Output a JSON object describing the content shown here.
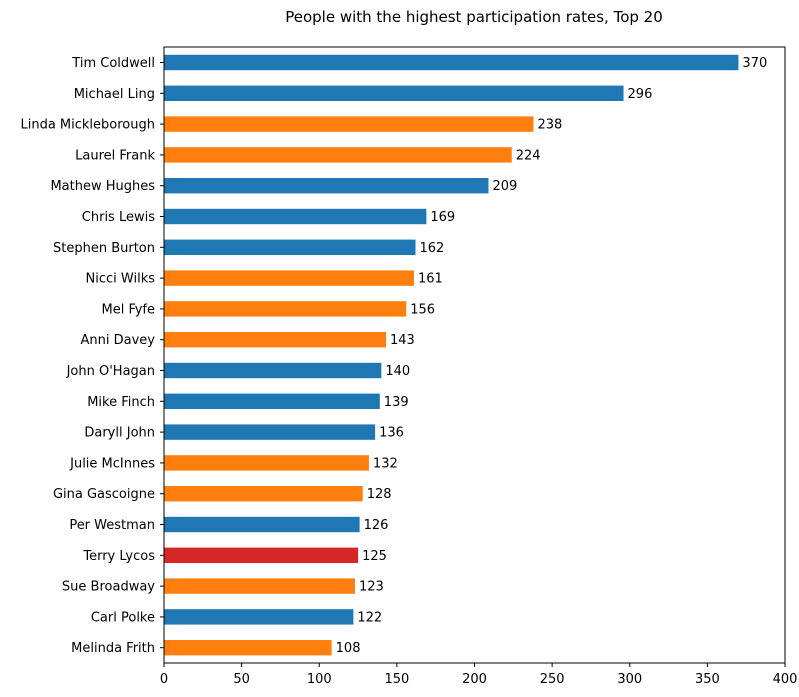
{
  "chart_data": {
    "type": "bar",
    "orientation": "horizontal",
    "title": "People with the highest participation rates, Top 20",
    "xlabel": "",
    "ylabel": "",
    "xlim": [
      0,
      400
    ],
    "xticks": [
      "0",
      "50",
      "100",
      "150",
      "200",
      "250",
      "300",
      "350",
      "400"
    ],
    "grid": false,
    "categories": [
      "Tim Coldwell",
      "Michael Ling",
      "Linda Mickleborough",
      "Laurel Frank",
      "Mathew Hughes",
      "Chris Lewis",
      "Stephen Burton",
      "Nicci Wilks",
      "Mel Fyfe",
      "Anni Davey",
      "John O'Hagan",
      "Mike Finch",
      "Daryll John",
      "Julie McInnes",
      "Gina Gascoigne",
      "Per Westman",
      "Terry Lycos",
      "Sue Broadway",
      "Carl Polke",
      "Melinda Frith"
    ],
    "values": [
      370,
      296,
      238,
      224,
      209,
      169,
      162,
      161,
      156,
      143,
      140,
      139,
      136,
      132,
      128,
      126,
      125,
      123,
      122,
      108
    ],
    "data_labels": [
      "370",
      "296",
      "238",
      "224",
      "209",
      "169",
      "162",
      "161",
      "156",
      "143",
      "140",
      "139",
      "136",
      "132",
      "128",
      "126",
      "125",
      "123",
      "122",
      "108"
    ],
    "bar_colors": [
      "#1f77b4",
      "#1f77b4",
      "#ff7f0e",
      "#ff7f0e",
      "#1f77b4",
      "#1f77b4",
      "#1f77b4",
      "#ff7f0e",
      "#ff7f0e",
      "#ff7f0e",
      "#1f77b4",
      "#1f77b4",
      "#1f77b4",
      "#ff7f0e",
      "#ff7f0e",
      "#1f77b4",
      "#d62728",
      "#ff7f0e",
      "#1f77b4",
      "#ff7f0e"
    ]
  }
}
